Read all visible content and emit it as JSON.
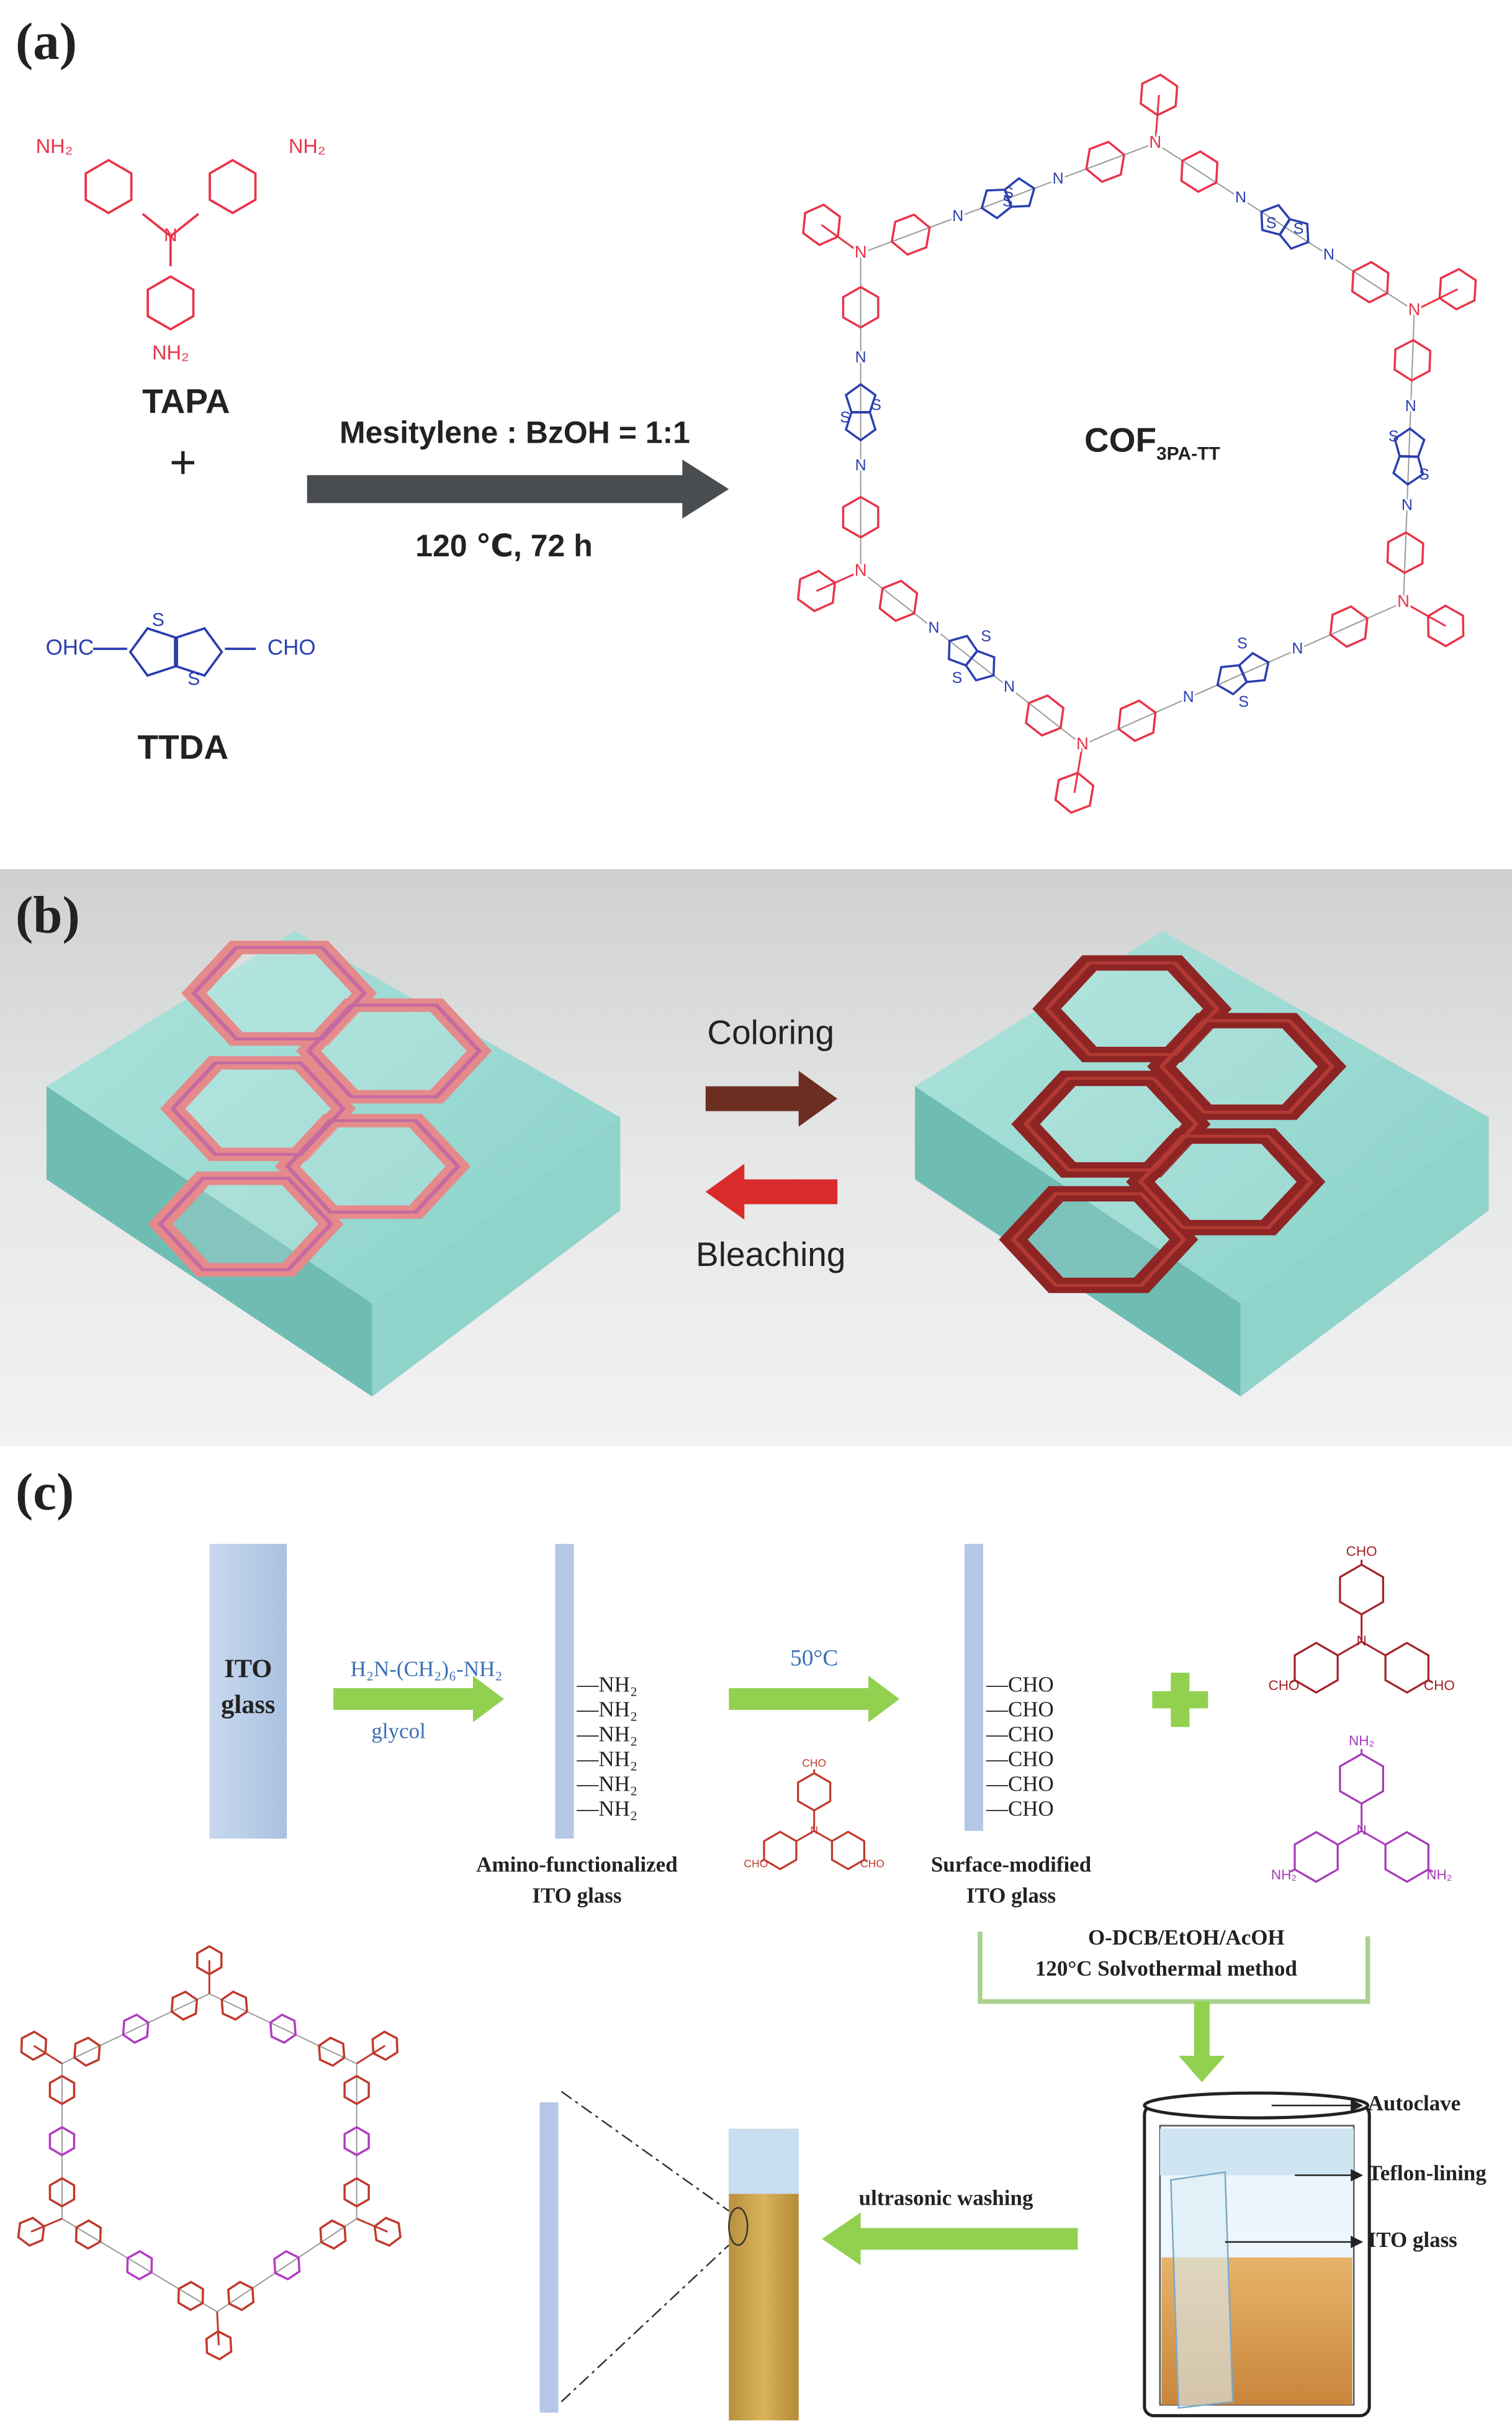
{
  "panel_a": {
    "label": "(a)",
    "reactant_1": {
      "name": "TAPA",
      "group": "NH₂",
      "center_atom": "N"
    },
    "plus": "+",
    "reactant_2": {
      "name": "TTDA",
      "left_group": "OHC",
      "right_group": "CHO",
      "sulfur": "S"
    },
    "conditions": {
      "solvent": "Mesitylene : BzOH = 1:1",
      "temperature_time": "120 ℃, 72 h"
    },
    "product": {
      "name": "COF",
      "subscript": "3PA-TT",
      "amine_atom": "N",
      "imine_atom": "N",
      "sulfur": "S"
    }
  },
  "panel_b": {
    "label": "(b)",
    "forward": "Coloring",
    "backward": "Bleaching"
  },
  "panel_c": {
    "label": "(c)",
    "ito_glass": [
      "ITO",
      "glass"
    ],
    "step_1": {
      "reagent": "H₂N-(CH₂)₆-NH₂",
      "solvent": "glycol",
      "group": "—NH₂",
      "caption": [
        "Amino-functionalized",
        "ITO glass"
      ]
    },
    "step_2": {
      "temperature": "50°C",
      "aldehyde": "CHO",
      "group": "—CHO",
      "caption": [
        "Surface-modified",
        "ITO glass"
      ]
    },
    "monomers": {
      "aldehyde": "CHO",
      "amine": "NH₂"
    },
    "step_3": {
      "solvent": "O-DCB/EtOH/AcOH",
      "method": "120°C   Solvothermal   method"
    },
    "autoclave_labels": [
      "Autoclave",
      "Teflon-lining",
      "ITO glass"
    ],
    "step_4": "ultrasonic washing"
  }
}
